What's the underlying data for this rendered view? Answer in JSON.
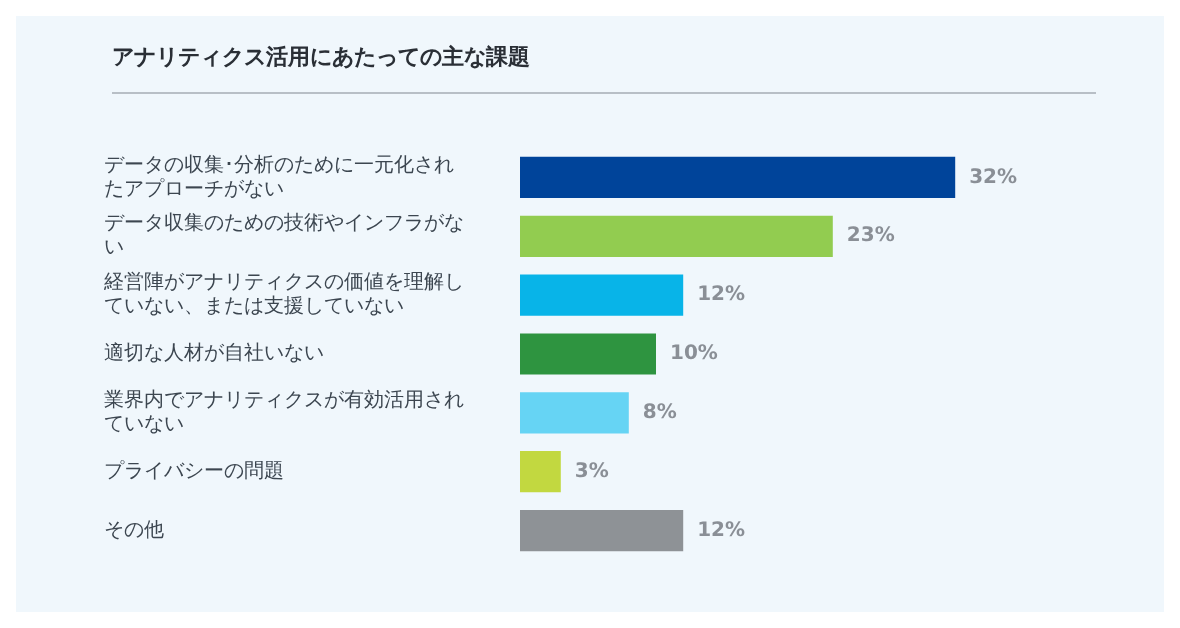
{
  "chart_data": {
    "type": "bar",
    "orientation": "horizontal",
    "title": "アナリティクス活用にあたっての主な課題",
    "categories": [
      "データの収集･分析のために一元化されたアプローチがない",
      "データ収集のための技術やインフラがない",
      "経営陣がアナリティクスの価値を理解していない、または支援していない",
      "適切な人材が自社いない",
      "業界内でアナリティクスが有効活用されていない",
      "プライバシーの問題",
      "その他"
    ],
    "values": [
      32,
      23,
      12,
      10,
      8,
      3,
      12
    ],
    "colors": [
      "#00449a",
      "#92cc50",
      "#08b4e8",
      "#2e9440",
      "#66d4f4",
      "#c2d840",
      "#8e9296"
    ],
    "data_labels": true,
    "value_labels": [
      "32%",
      "23%",
      "12%",
      "10%",
      "8%",
      "3%",
      "12%"
    ],
    "legend": false
  }
}
